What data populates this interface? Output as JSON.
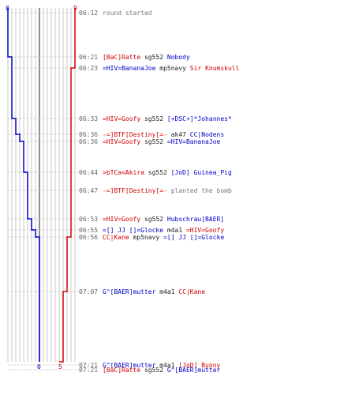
{
  "scores": {
    "blue_start": "8",
    "red_start": "9",
    "blue_final": "0",
    "red_final": "5"
  },
  "colors": {
    "blue": "#0000c8",
    "red": "#d00000",
    "grid": "#c8c8c8",
    "mid": "#666666"
  },
  "events": [
    {
      "time": "06:12",
      "parts": [
        {
          "t": "round started",
          "c": "gray"
        }
      ]
    },
    {
      "time": "06:21",
      "parts": [
        {
          "t": "[BaC]Ratte",
          "c": "red"
        },
        {
          "t": " sg552 ",
          "c": "dark"
        },
        {
          "t": "Nobody",
          "c": "blue"
        }
      ]
    },
    {
      "time": "06:23",
      "parts": [
        {
          "t": "=HIV=BananaJoe",
          "c": "blue"
        },
        {
          "t": " mp5navy ",
          "c": "dark"
        },
        {
          "t": "Sir Knumskull",
          "c": "red"
        }
      ]
    },
    {
      "time": "06:33",
      "parts": [
        {
          "t": "=HIV=Goofy",
          "c": "red"
        },
        {
          "t": " sg552 ",
          "c": "dark"
        },
        {
          "t": "[+DSC+]*Johannes*",
          "c": "blue"
        }
      ]
    },
    {
      "time": "06:36",
      "parts": [
        {
          "t": "-=]BTF[Destiny[=-",
          "c": "red"
        },
        {
          "t": " ak47 ",
          "c": "dark"
        },
        {
          "t": "CC|Nodens",
          "c": "blue"
        }
      ]
    },
    {
      "time": "06:36",
      "parts": [
        {
          "t": "=HIV=Goofy",
          "c": "red"
        },
        {
          "t": " sg552 ",
          "c": "dark"
        },
        {
          "t": "=HIV=BananaJoe",
          "c": "blue"
        }
      ]
    },
    {
      "time": "06:44",
      "parts": [
        {
          "t": ">bTCa<Akira",
          "c": "red"
        },
        {
          "t": " sg552 ",
          "c": "dark"
        },
        {
          "t": "[JoD] Guinea_Pig",
          "c": "blue"
        }
      ]
    },
    {
      "time": "06:47",
      "parts": [
        {
          "t": "-=]BTF[Destiny[=-",
          "c": "red"
        },
        {
          "t": " planted the bomb",
          "c": "gray"
        }
      ]
    },
    {
      "time": "06:53",
      "parts": [
        {
          "t": "=HIV=Goofy",
          "c": "red"
        },
        {
          "t": " sg552 ",
          "c": "dark"
        },
        {
          "t": "Hubschrau[BAER]",
          "c": "blue"
        }
      ]
    },
    {
      "time": "06:55",
      "parts": [
        {
          "t": "=[] JJ []=Glocke",
          "c": "blue"
        },
        {
          "t": " m4a1 ",
          "c": "dark"
        },
        {
          "t": "=HIV=Goofy",
          "c": "red"
        }
      ]
    },
    {
      "time": "06:56",
      "parts": [
        {
          "t": "CC|Kane",
          "c": "red"
        },
        {
          "t": " mp5navy ",
          "c": "dark"
        },
        {
          "t": "=[] JJ []=Glocke",
          "c": "blue"
        }
      ]
    },
    {
      "time": "07:07",
      "parts": [
        {
          "t": "G^[BAER]mutter",
          "c": "blue"
        },
        {
          "t": " m4a1 ",
          "c": "dark"
        },
        {
          "t": "CC|Kane",
          "c": "red"
        }
      ]
    },
    {
      "time": "07:21",
      "parts": [
        {
          "t": "G^[BAER]mutter",
          "c": "blue"
        },
        {
          "t": " m4a1 ",
          "c": "dark"
        },
        {
          "t": "[JoD] Bunny",
          "c": "red"
        }
      ]
    },
    {
      "time": "07:21",
      "parts": [
        {
          "t": "[BaC]Ratte",
          "c": "red"
        },
        {
          "t": " sg552 ",
          "c": "dark"
        },
        {
          "t": "G^[BAER]mutter",
          "c": "blue"
        }
      ]
    }
  ]
}
